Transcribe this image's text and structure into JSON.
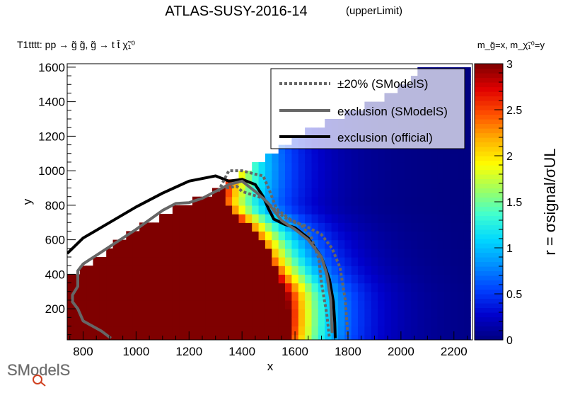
{
  "title": "ATLAS-SUSY-2016-14",
  "subtitle": "(upperLimit)",
  "process_label": "T1tttt: pp → g̃ g̃, g̃ → t t̄ χ̃₁⁰",
  "mass_label": "m_g̃=x, m_χ̃₁⁰=y",
  "logo_text": "SModelS",
  "chart_data": {
    "type": "heatmap",
    "xlabel": "x",
    "ylabel": "y",
    "zlabel": "r = σsignal/σUL",
    "xlim": [
      740,
      2270
    ],
    "ylim": [
      20,
      1620
    ],
    "zlim": [
      0,
      3
    ],
    "x_ticks": [
      800,
      1000,
      1200,
      1400,
      1600,
      1800,
      2000,
      2200
    ],
    "y_ticks": [
      200,
      400,
      600,
      800,
      1000,
      1200,
      1400,
      1600
    ],
    "z_ticks": [
      0,
      0.5,
      1,
      1.5,
      2,
      2.5,
      3
    ],
    "colorscale": [
      "#00007f",
      "#0000cc",
      "#0040ff",
      "#0090ff",
      "#00d8ff",
      "#40ffd0",
      "#a0ff60",
      "#ffff00",
      "#ffb000",
      "#ff5000",
      "#e00000",
      "#7f0000"
    ],
    "grid_step": [
      25,
      50
    ],
    "region_model": {
      "ridge_top_y": [
        [
          740,
          380
        ],
        [
          800,
          440
        ],
        [
          1000,
          660
        ],
        [
          1200,
          820
        ],
        [
          1300,
          890
        ],
        [
          1400,
          990
        ],
        [
          1500,
          1080
        ],
        [
          1600,
          1200
        ],
        [
          1800,
          1330
        ],
        [
          2000,
          1480
        ],
        [
          2100,
          1630
        ]
      ],
      "saturated_edge_x": [
        [
          50,
          1580
        ],
        [
          300,
          1570
        ],
        [
          450,
          1520
        ],
        [
          600,
          1480
        ],
        [
          700,
          1420
        ],
        [
          800,
          1330
        ]
      ],
      "falloff_width": 150
    },
    "series": [
      {
        "name": "exclusion (official)",
        "color": "#000000",
        "style": "solid",
        "x": [
          740,
          800,
          900,
          1000,
          1100,
          1200,
          1300,
          1350,
          1400,
          1450,
          1480,
          1500,
          1520,
          1560,
          1600,
          1650,
          1700,
          1730,
          1745,
          1750,
          1752
        ],
        "y": [
          520,
          610,
          700,
          790,
          870,
          940,
          970,
          940,
          950,
          920,
          850,
          780,
          720,
          690,
          670,
          610,
          500,
          370,
          240,
          120,
          30
        ]
      },
      {
        "name": "exclusion (SModelS)",
        "color": "#666666",
        "style": "solid",
        "x": [
          905,
          870,
          800,
          780,
          760,
          760,
          780,
          780,
          800,
          900,
          1000,
          1100,
          1150,
          1200,
          1250,
          1300,
          1350,
          1400,
          1450,
          1480,
          1500,
          1550,
          1600,
          1650,
          1700,
          1720,
          1735,
          1740
        ],
        "y": [
          30,
          70,
          130,
          200,
          240,
          280,
          330,
          420,
          460,
          560,
          660,
          770,
          810,
          815,
          840,
          880,
          920,
          940,
          880,
          840,
          810,
          710,
          660,
          600,
          500,
          400,
          250,
          60
        ]
      },
      {
        "name": "±20% (SModelS)",
        "color": "#666666",
        "style": "dotted",
        "x": [
          1310,
          1350,
          1400,
          1450,
          1480,
          1500,
          1530,
          1580,
          1620,
          1660,
          1690,
          1700,
          1720,
          1730
        ],
        "y": [
          880,
          1000,
          1000,
          980,
          970,
          900,
          780,
          720,
          690,
          620,
          490,
          350,
          170,
          30
        ]
      },
      {
        "name": "±20% (SModelS)",
        "color": "#666666",
        "style": "dotted",
        "x": [
          1340,
          1380,
          1400,
          1440,
          1480,
          1520,
          1560,
          1600,
          1640,
          1700,
          1740,
          1770,
          1790,
          1800
        ],
        "y": [
          900,
          910,
          880,
          860,
          840,
          780,
          730,
          700,
          680,
          630,
          550,
          440,
          250,
          30
        ]
      }
    ],
    "legend": {
      "placement": "top-right",
      "entries": [
        {
          "label": "±20% (SModelS)",
          "color": "#666666",
          "style": "dotted"
        },
        {
          "label": "exclusion (SModelS)",
          "color": "#666666",
          "style": "solid"
        },
        {
          "label": "exclusion (official)",
          "color": "#000000",
          "style": "solid"
        }
      ]
    }
  }
}
